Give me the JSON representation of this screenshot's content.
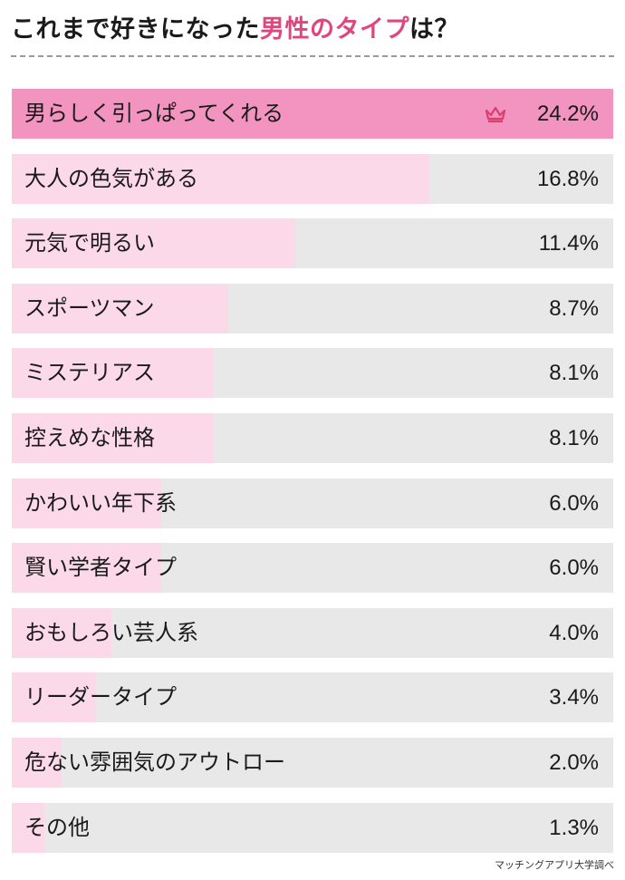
{
  "title": {
    "prefix": "これまで好きになった",
    "highlight": "男性のタイプ",
    "suffix": "は？"
  },
  "source": "マッチングアプリ大学調べ",
  "colors": {
    "top_bar": "#f294bf",
    "other_bar": "#fcd9e8",
    "track": "#e8e8e8",
    "title_highlight": "#e0467e",
    "crown": "#d9406e"
  },
  "chart_data": {
    "type": "bar",
    "orientation": "horizontal",
    "title": "これまで好きになった男性のタイプは？",
    "categories": [
      "男らしく引っぱってくれる",
      "大人の色気がある",
      "元気で明るい",
      "スポーツマン",
      "ミステリアス",
      "控えめな性格",
      "かわいい年下系",
      "賢い学者タイプ",
      "おもしろい芸人系",
      "リーダータイプ",
      "危ない雰囲気のアウトロー",
      "その他"
    ],
    "values": [
      24.2,
      16.8,
      11.4,
      8.7,
      8.1,
      8.1,
      6.0,
      6.0,
      4.0,
      3.4,
      2.0,
      1.3
    ],
    "value_labels": [
      "24.2%",
      "16.8%",
      "11.4%",
      "8.7%",
      "8.1%",
      "8.1%",
      "6.0%",
      "6.0%",
      "4.0%",
      "3.4%",
      "2.0%",
      "1.3%"
    ],
    "xlim": [
      0,
      24.2
    ],
    "unit": "%",
    "top_marker": "crown-icon",
    "grid": false
  }
}
